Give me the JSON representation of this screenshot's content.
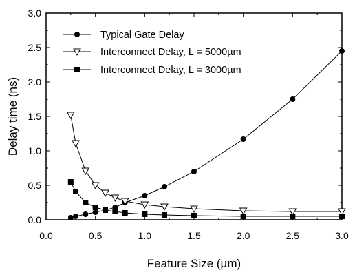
{
  "chart_data": {
    "type": "line",
    "xlabel": "Feature Size (µm)",
    "ylabel": "Delay time (ns)",
    "xlim": [
      0.0,
      3.0
    ],
    "ylim": [
      0.0,
      3.0
    ],
    "x_ticks": [
      "0.0",
      "0.5",
      "1.0",
      "1.5",
      "2.0",
      "2.5",
      "3.0"
    ],
    "y_ticks": [
      "0.0",
      "0.5",
      "1.0",
      "1.5",
      "2.0",
      "2.5",
      "3.0"
    ],
    "grid": false,
    "legend_position": "top-left",
    "series": [
      {
        "name": "Typical Gate Delay",
        "marker": "circle",
        "x": [
          0.25,
          0.3,
          0.4,
          0.5,
          0.6,
          0.7,
          0.8,
          1.0,
          1.2,
          1.5,
          2.0,
          2.5,
          3.0
        ],
        "y": [
          0.03,
          0.05,
          0.08,
          0.11,
          0.14,
          0.18,
          0.25,
          0.35,
          0.48,
          0.7,
          1.17,
          1.75,
          2.45
        ]
      },
      {
        "name": "Interconnect Delay, L = 5000µm",
        "marker": "triangle-down",
        "x": [
          0.25,
          0.3,
          0.4,
          0.5,
          0.6,
          0.7,
          0.8,
          1.0,
          1.2,
          1.5,
          2.0,
          2.5,
          3.0
        ],
        "y": [
          1.52,
          1.11,
          0.71,
          0.5,
          0.39,
          0.32,
          0.27,
          0.22,
          0.19,
          0.16,
          0.13,
          0.12,
          0.12
        ]
      },
      {
        "name": "Interconnect Delay, L = 3000µm",
        "marker": "square",
        "x": [
          0.25,
          0.3,
          0.4,
          0.5,
          0.6,
          0.7,
          0.8,
          1.0,
          1.2,
          1.5,
          2.0,
          2.5,
          3.0
        ],
        "y": [
          0.55,
          0.41,
          0.25,
          0.18,
          0.14,
          0.12,
          0.1,
          0.08,
          0.07,
          0.06,
          0.05,
          0.05,
          0.05
        ]
      }
    ]
  }
}
